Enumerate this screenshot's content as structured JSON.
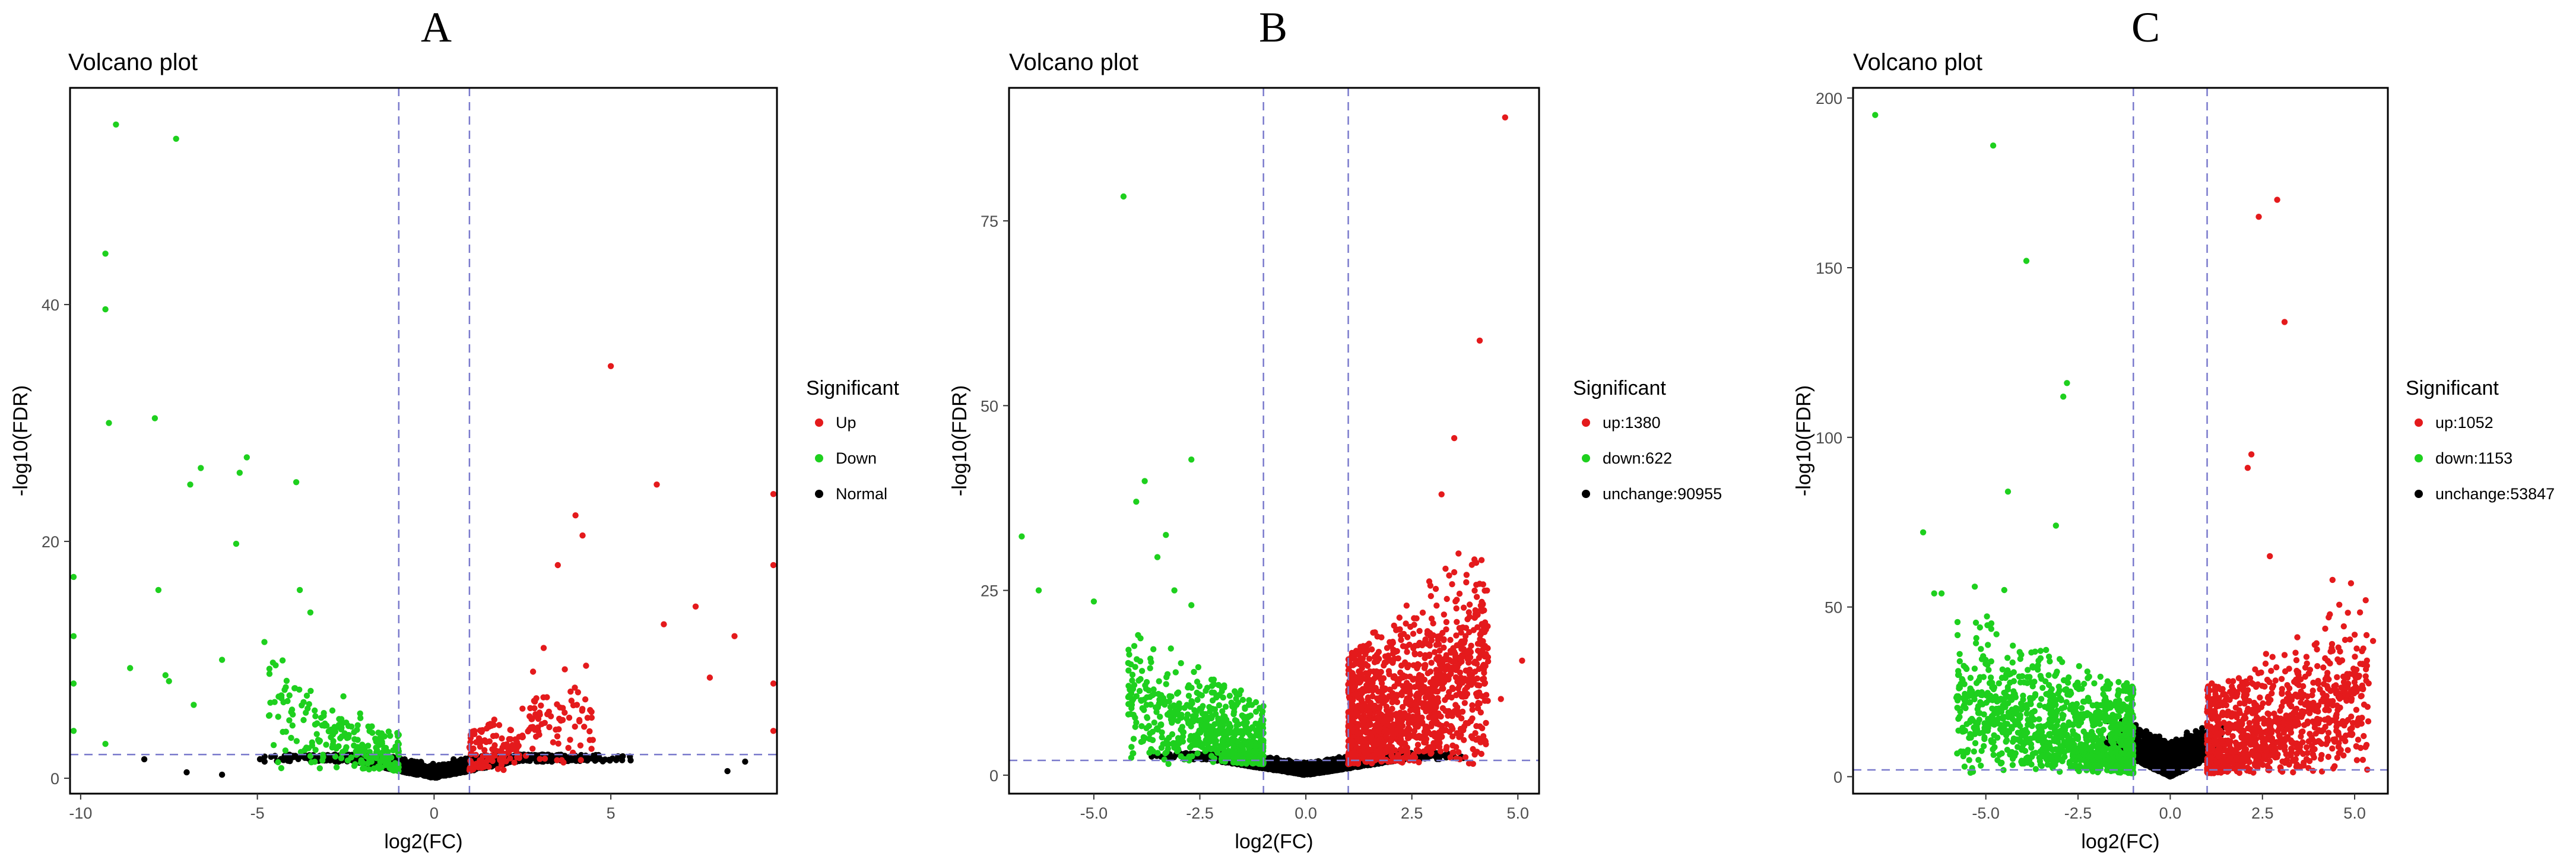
{
  "chart_data": [
    {
      "panel": "A",
      "type": "scatter",
      "title": "Volcano plot",
      "xlabel": "log2(FC)",
      "ylabel": "-log10(FDR)",
      "xlim": [
        -10.3,
        9.7
      ],
      "ylim": [
        -1.3,
        58.3
      ],
      "xticks": [
        -10,
        -5,
        0,
        5
      ],
      "yticks": [
        0,
        20,
        40
      ],
      "fc_threshold": 1,
      "fdr_threshold_line": 2,
      "framed": true,
      "legend": {
        "title": "Significant",
        "position": "right"
      },
      "series": [
        {
          "name": "Up",
          "color": "#e41a1c",
          "count": null,
          "type": "scatter",
          "points": [
            [
              5.0,
              34.8
            ],
            [
              6.3,
              24.8
            ],
            [
              4.0,
              22.2
            ],
            [
              4.2,
              20.5
            ],
            [
              3.5,
              18.0
            ],
            [
              7.4,
              14.5
            ],
            [
              8.5,
              12.0
            ],
            [
              6.5,
              13.0
            ],
            [
              4.3,
              9.5
            ],
            [
              7.8,
              8.5
            ],
            [
              3.1,
              11.0
            ],
            [
              2.8,
              9.0
            ],
            [
              9.6,
              24.0
            ],
            [
              9.6,
              18.0
            ],
            [
              9.6,
              8.0
            ],
            [
              9.6,
              4.0
            ]
          ],
          "generated": {
            "count": 200,
            "xmin": 1.0,
            "xmax": 4.5,
            "base": 0.6,
            "slope": 2.1,
            "spread": 3.5
          }
        },
        {
          "name": "Down",
          "color": "#1ed01e",
          "count": null,
          "type": "scatter",
          "points": [
            [
              -9.0,
              55.2
            ],
            [
              -7.3,
              54.0
            ],
            [
              -9.3,
              44.3
            ],
            [
              -9.3,
              39.6
            ],
            [
              -7.9,
              30.4
            ],
            [
              -9.2,
              30.0
            ],
            [
              -6.6,
              26.2
            ],
            [
              -5.3,
              27.1
            ],
            [
              -6.9,
              24.8
            ],
            [
              -5.5,
              25.8
            ],
            [
              -3.9,
              25.0
            ],
            [
              -5.6,
              19.8
            ],
            [
              -7.8,
              15.9
            ],
            [
              -3.8,
              15.9
            ],
            [
              -3.5,
              14.0
            ],
            [
              -8.6,
              9.3
            ],
            [
              -7.6,
              8.7
            ],
            [
              -7.5,
              8.2
            ],
            [
              -6.8,
              6.2
            ],
            [
              -9.3,
              2.9
            ],
            [
              -10.2,
              17.0
            ],
            [
              -10.2,
              12.0
            ],
            [
              -10.2,
              8.0
            ],
            [
              -10.2,
              4.0
            ],
            [
              -4.8,
              11.5
            ],
            [
              -6.0,
              10.0
            ]
          ],
          "generated": {
            "count": 230,
            "xmin": -4.8,
            "xmax": -1.0,
            "base": 0.6,
            "slope": 2.1,
            "spread": 3.3
          }
        },
        {
          "name": "Normal",
          "color": "#000000",
          "count": null,
          "type": "scatter",
          "points": [
            [
              -8.2,
              1.6
            ],
            [
              -7.0,
              0.5
            ],
            [
              -6.0,
              0.3
            ],
            [
              8.8,
              1.4
            ],
            [
              8.3,
              0.6
            ]
          ],
          "generated": {
            "count": 1500,
            "xmin": -5.5,
            "xmax": 6.2,
            "vcoef": 0.6,
            "spread": 1.3,
            "cap": 2.0
          }
        }
      ]
    },
    {
      "panel": "B",
      "type": "scatter",
      "title": "Volcano plot",
      "xlabel": "log2(FC)",
      "ylabel": "-log10(FDR)",
      "xlim": [
        -7.0,
        5.5
      ],
      "ylim": [
        -2.5,
        93.0
      ],
      "xticks": [
        -5.0,
        -2.5,
        0.0,
        2.5,
        5.0
      ],
      "yticks": [
        0,
        25,
        50,
        75
      ],
      "fc_threshold": 1,
      "fdr_threshold_line": 2,
      "framed": true,
      "legend": {
        "title": "Significant",
        "position": "right"
      },
      "series": [
        {
          "name": "up",
          "color": "#e41a1c",
          "count": 1380,
          "type": "scatter",
          "points": [
            [
              4.7,
              89.0
            ],
            [
              4.1,
              58.8
            ],
            [
              3.5,
              45.6
            ],
            [
              5.1,
              15.5
            ],
            [
              4.6,
              10.3
            ],
            [
              3.2,
              38.0
            ],
            [
              3.6,
              30.0
            ]
          ],
          "generated": {
            "count": 1380,
            "xmin": 1.0,
            "xmax": 4.3,
            "base": 1.5,
            "slope": 5.5,
            "spread": 15.0
          }
        },
        {
          "name": "down",
          "color": "#1ed01e",
          "count": 622,
          "type": "scatter",
          "points": [
            [
              -4.3,
              78.3
            ],
            [
              -6.7,
              32.3
            ],
            [
              -6.3,
              25.0
            ],
            [
              -3.8,
              39.8
            ],
            [
              -4.0,
              37.0
            ],
            [
              -2.7,
              42.7
            ],
            [
              -3.3,
              32.5
            ],
            [
              -3.5,
              29.5
            ],
            [
              -3.1,
              25.0
            ],
            [
              -2.7,
              23.0
            ],
            [
              -5.0,
              23.5
            ],
            [
              -3.9,
              13.0
            ]
          ],
          "generated": {
            "count": 622,
            "xmin": -4.2,
            "xmax": -1.0,
            "base": 1.5,
            "slope": 4.0,
            "spread": 8.0
          }
        },
        {
          "name": "unchange",
          "color": "#000000",
          "count": 90955,
          "type": "scatter",
          "points": [],
          "generated": {
            "count": 2200,
            "xmin": -3.9,
            "xmax": 4.0,
            "vcoef": 0.9,
            "spread": 1.8,
            "cap": 3.0
          }
        }
      ]
    },
    {
      "panel": "C",
      "type": "scatter",
      "title": "Volcano plot",
      "xlabel": "log2(FC)",
      "ylabel": "-log10(FDR)",
      "xlim": [
        -8.6,
        5.9
      ],
      "ylim": [
        -5.0,
        203.0
      ],
      "xticks": [
        -5.0,
        -2.5,
        0.0,
        2.5,
        5.0
      ],
      "yticks": [
        0,
        50,
        100,
        150,
        200
      ],
      "fc_threshold": 1,
      "fdr_threshold_line": 2,
      "framed": true,
      "legend": {
        "title": "Significant",
        "position": "right"
      },
      "series": [
        {
          "name": "up",
          "color": "#e41a1c",
          "count": 1052,
          "type": "scatter",
          "points": [
            [
              2.9,
              170.0
            ],
            [
              2.4,
              165.0
            ],
            [
              3.1,
              134.0
            ],
            [
              2.2,
              95.0
            ],
            [
              2.1,
              91.0
            ],
            [
              2.7,
              65.0
            ],
            [
              4.4,
              58.0
            ],
            [
              4.9,
              57.0
            ],
            [
              5.3,
              52.0
            ],
            [
              5.5,
              40.0
            ],
            [
              5.2,
              37.0
            ]
          ],
          "generated": {
            "count": 1052,
            "xmin": 1.0,
            "xmax": 5.4,
            "base": 1.0,
            "slope": 7.0,
            "spread": 26.0
          }
        },
        {
          "name": "down",
          "color": "#1ed01e",
          "count": 1153,
          "type": "scatter",
          "points": [
            [
              -8.0,
              195.0
            ],
            [
              -4.8,
              186.0
            ],
            [
              -3.9,
              152.0
            ],
            [
              -2.8,
              116.0
            ],
            [
              -2.9,
              112.0
            ],
            [
              -4.4,
              84.0
            ],
            [
              -3.1,
              74.0
            ],
            [
              -6.7,
              72.0
            ],
            [
              -6.2,
              54.0
            ],
            [
              -6.4,
              54.0
            ],
            [
              -5.3,
              56.0
            ],
            [
              -4.5,
              55.0
            ]
          ],
          "generated": {
            "count": 1153,
            "xmin": -5.8,
            "xmax": -1.0,
            "base": 1.0,
            "slope": 6.0,
            "spread": 26.0
          }
        },
        {
          "name": "unchange",
          "color": "#000000",
          "count": 53847,
          "type": "scatter",
          "points": [],
          "generated": {
            "count": 1800,
            "xmin": -1.9,
            "xmax": 1.6,
            "vcoef": 5.0,
            "spread": 11.0,
            "cap": 30.0
          }
        }
      ]
    }
  ]
}
